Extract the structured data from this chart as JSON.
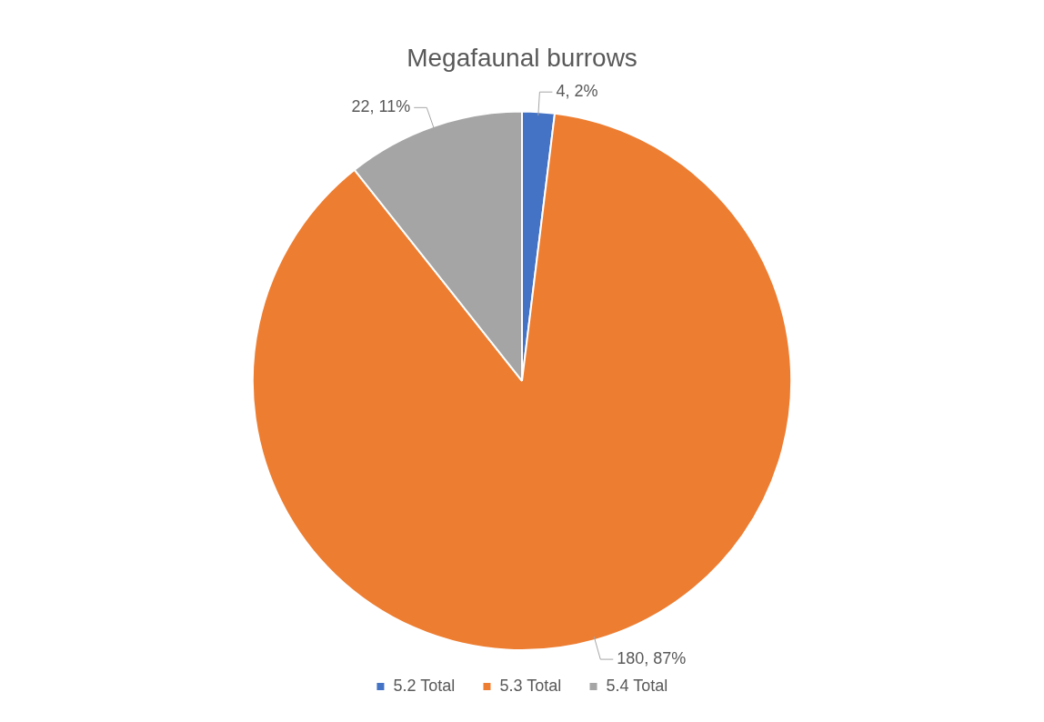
{
  "chart_data": {
    "type": "pie",
    "title": "Megafaunal burrows",
    "categories": [
      "5.2 Total",
      "5.3 Total",
      "5.4 Total"
    ],
    "values": [
      4,
      180,
      22
    ],
    "colors": [
      "#4472c4",
      "#ed7d31",
      "#a5a5a5"
    ],
    "value_labels": [
      "4, 2%",
      "180, 87%",
      "22, 11%"
    ],
    "legend": "bottom"
  }
}
